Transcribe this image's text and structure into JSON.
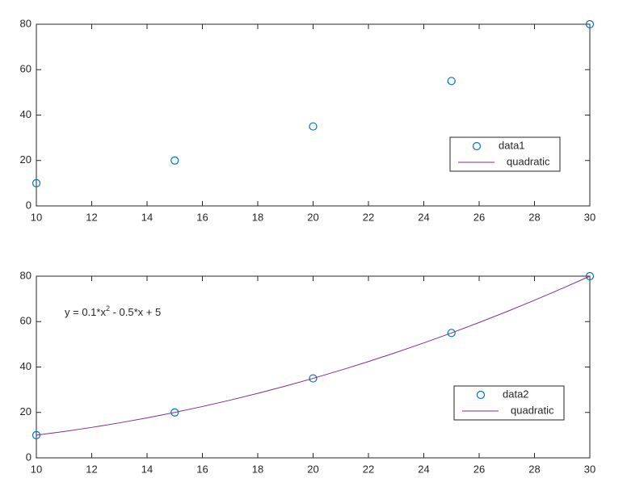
{
  "chart_data": [
    {
      "type": "scatter",
      "xlim": [
        10,
        30
      ],
      "ylim": [
        0,
        80
      ],
      "xticks": [
        10,
        12,
        14,
        16,
        18,
        20,
        22,
        24,
        26,
        28,
        30
      ],
      "yticks": [
        0,
        20,
        40,
        60,
        80
      ],
      "legend": "southeast",
      "series": [
        {
          "name": "data1",
          "style": "marker",
          "color": "#0072bd",
          "x": [
            10,
            15,
            20,
            25,
            30
          ],
          "values": [
            10,
            20,
            35,
            55,
            80
          ]
        },
        {
          "name": "quadratic",
          "style": "line",
          "color": "#7e2f8e",
          "x": [],
          "values": []
        }
      ]
    },
    {
      "type": "scatter",
      "xlim": [
        10,
        30
      ],
      "ylim": [
        0,
        80
      ],
      "xticks": [
        10,
        12,
        14,
        16,
        18,
        20,
        22,
        24,
        26,
        28,
        30
      ],
      "yticks": [
        0,
        20,
        40,
        60,
        80
      ],
      "legend": "southeast",
      "annotation": [
        "y = 0.1*x",
        "2",
        " - 0.5*x + 5"
      ],
      "series": [
        {
          "name": "data2",
          "style": "marker",
          "color": "#0072bd",
          "x": [
            10,
            15,
            20,
            25,
            30
          ],
          "values": [
            10,
            20,
            35,
            55,
            80
          ]
        },
        {
          "name": "quadratic",
          "style": "line",
          "color": "#7e2f8e",
          "x": [
            10,
            11,
            12,
            13,
            14,
            15,
            16,
            17,
            18,
            19,
            20,
            21,
            22,
            23,
            24,
            25,
            26,
            27,
            28,
            29,
            30
          ],
          "values": [
            10,
            11.6,
            13.4,
            15.4,
            17.6,
            20,
            22.6,
            25.4,
            28.4,
            31.6,
            35,
            38.6,
            42.4,
            46.4,
            50.6,
            55,
            59.6,
            64.4,
            69.4,
            74.6,
            80
          ]
        }
      ]
    }
  ]
}
